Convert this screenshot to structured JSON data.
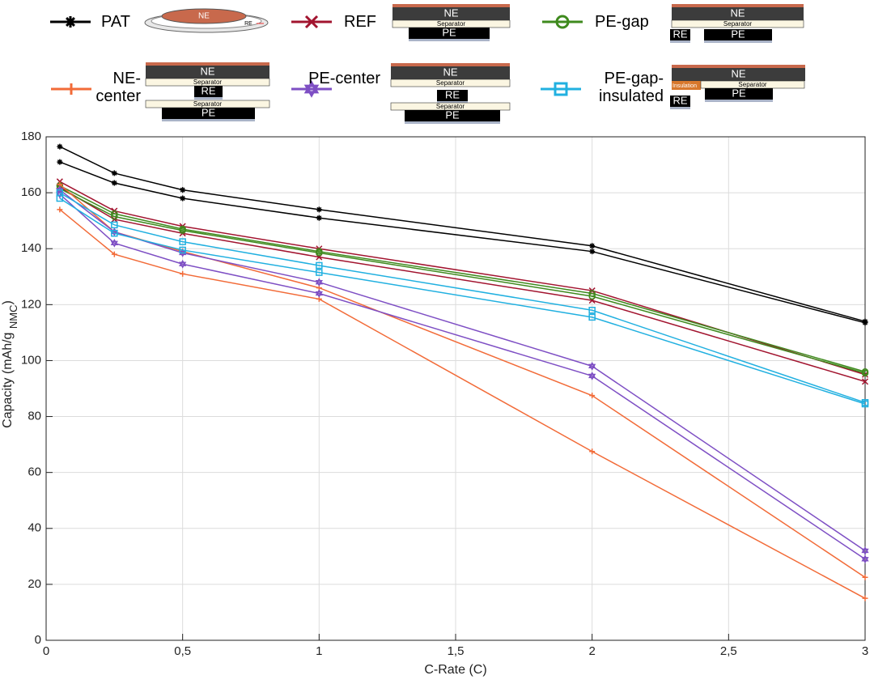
{
  "chart_data": {
    "type": "line",
    "x": [
      0.05,
      0.25,
      0.5,
      1,
      2,
      3
    ],
    "xlabel": "C-Rate (C)",
    "ylabel": [
      "Capacity (mAh/g ",
      "NMC",
      ")"
    ],
    "xlim": [
      0,
      3
    ],
    "ylim": [
      0,
      180
    ],
    "xticks": [
      0,
      {
        "value": 0.5,
        "label": "0,5"
      },
      1,
      {
        "value": 1.5,
        "label": "1,5"
      },
      2,
      {
        "value": 2.5,
        "label": "2,5"
      },
      3
    ],
    "yticks": [
      0,
      20,
      40,
      60,
      80,
      100,
      120,
      140,
      160,
      180
    ],
    "grid": true,
    "series": [
      {
        "name": "PAT",
        "color": "#000000",
        "marker": "asterisk",
        "values": [
          [
            176.5,
            167,
            161,
            154,
            141,
            114
          ],
          [
            171,
            163.5,
            158,
            151,
            139,
            113.5
          ]
        ]
      },
      {
        "name": "REF",
        "color": "#a2142f",
        "marker": "x",
        "values": [
          [
            164,
            153.5,
            148,
            140,
            125,
            95
          ],
          [
            162,
            150.5,
            145.5,
            137,
            121.5,
            92.5
          ]
        ]
      },
      {
        "name": "PE-gap",
        "color": "#3f8a1e",
        "marker": "circle",
        "values": [
          [
            162.5,
            152.5,
            147,
            139,
            124,
            96
          ],
          [
            161.5,
            151.5,
            146.5,
            138.5,
            123,
            95.5
          ]
        ]
      },
      {
        "name": "NE-center",
        "color": "#f26b38",
        "marker": "plus",
        "values": [
          [
            163,
            146,
            139,
            126,
            87.5,
            22.5
          ],
          [
            154,
            138,
            131,
            122,
            67.5,
            15
          ]
        ]
      },
      {
        "name": "PE-center",
        "color": "#7e4fc4",
        "marker": "hexagram",
        "values": [
          [
            161,
            146,
            138.5,
            128,
            98,
            32
          ],
          [
            159.5,
            142,
            134.5,
            124,
            94.5,
            29
          ]
        ]
      },
      {
        "name": "PE-gap-insulated",
        "color": "#21b0e0",
        "marker": "square",
        "values": [
          [
            160,
            148.5,
            142.5,
            134,
            118,
            85
          ],
          [
            158,
            145.5,
            139.5,
            131.5,
            115.5,
            84.5
          ]
        ]
      }
    ]
  },
  "schematic_labels": {
    "ne": "NE",
    "separator": "Separator",
    "pe": "PE",
    "re": "RE",
    "insulation": "Insulation"
  }
}
